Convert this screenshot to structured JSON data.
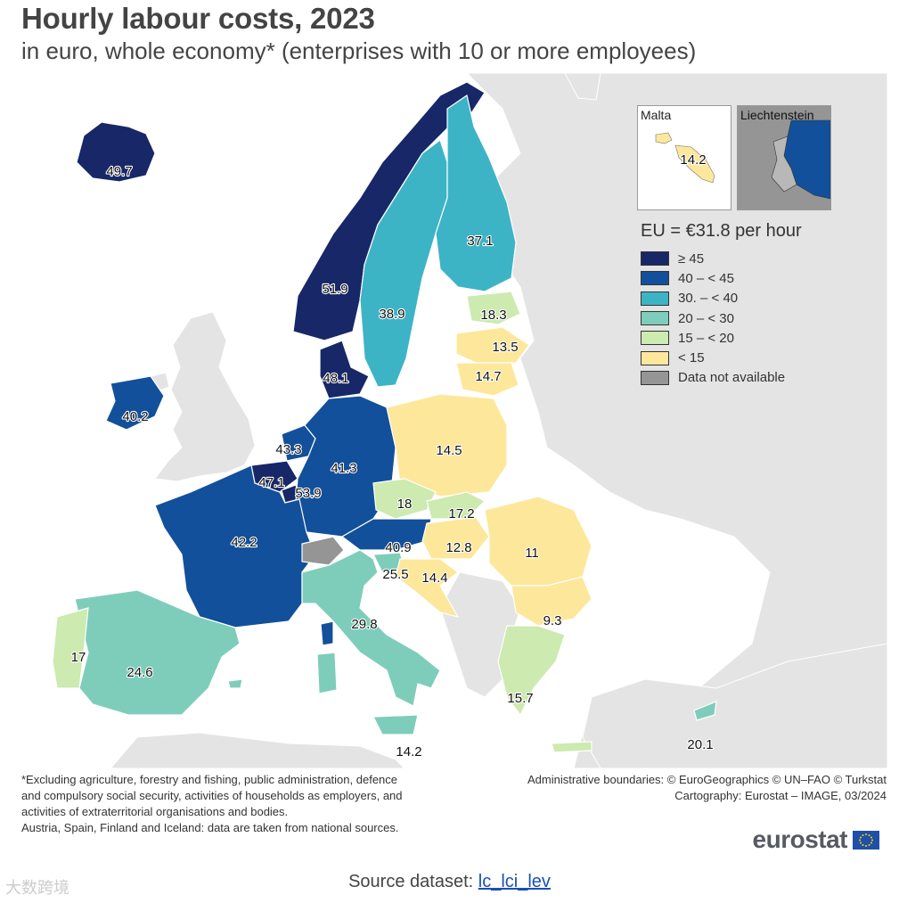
{
  "header": {
    "title": "Hourly labour costs, 2023",
    "subtitle": "in euro, whole economy* (enterprises with 10 or more employees)"
  },
  "colors": {
    "c1": "#172768",
    "c2": "#12509b",
    "c3": "#3db4c5",
    "c4": "#7ecdba",
    "c5": "#cdeab0",
    "c6": "#fde79b",
    "na": "#959595",
    "nonEU": "#e4e4e4",
    "sea": "#ffffff"
  },
  "legend": {
    "title": "EU = €31.8 per hour",
    "items": [
      {
        "label": "≥ 45",
        "color": "#172768"
      },
      {
        "label": "40 – < 45",
        "color": "#12509b"
      },
      {
        "label": "30. – < 40",
        "color": "#3db4c5"
      },
      {
        "label": "20 – < 30",
        "color": "#7ecdba"
      },
      {
        "label": "15 – < 20",
        "color": "#cdeab0"
      },
      {
        "label": "< 15",
        "color": "#fde79b"
      },
      {
        "label": "Data not available",
        "color": "#959595"
      }
    ]
  },
  "insets": {
    "malta": {
      "label": "Malta",
      "value": "14.2"
    },
    "liechtenstein": {
      "label": "Liechtenstein"
    }
  },
  "countries": {
    "IS": "49.7",
    "NO": "51.9",
    "SE": "38.9",
    "FI": "37.1",
    "EE": "18.3",
    "LV": "13.5",
    "LT": "14.7",
    "DK": "48.1",
    "IE": "40.2",
    "NL": "43.3",
    "BE": "47.1",
    "LU": "53.9",
    "DE": "41.3",
    "PL": "14.5",
    "CZ": "18",
    "SK": "17.2",
    "AT": "40.9",
    "HU": "12.8",
    "RO": "11",
    "SI": "25.5",
    "HR": "14.4",
    "BG": "9.3",
    "FR": "42.2",
    "IT": "29.8",
    "ES": "24.6",
    "PT": "17",
    "GR": "15.7",
    "CY": "20.1",
    "MT": "14.2"
  },
  "footnote": {
    "lines": [
      "*Excluding agriculture, forestry and fishing, public administration, defence",
      "and compulsory social security, activities of households as employers, and",
      "activities of extraterritorial organisations and bodies.",
      "Austria, Spain, Finland and Iceland: data are taken from national sources."
    ]
  },
  "credits": {
    "line1": "Administrative boundaries: © EuroGeographics © UN–FAO © Turkstat",
    "line2": "Cartography: Eurostat – IMAGE, 03/2024"
  },
  "logo": {
    "text": "eurostat"
  },
  "source": {
    "prefix": "Source dataset: ",
    "link": "lc_lci_lev"
  },
  "watermark": {
    "text": "大数跨境"
  }
}
